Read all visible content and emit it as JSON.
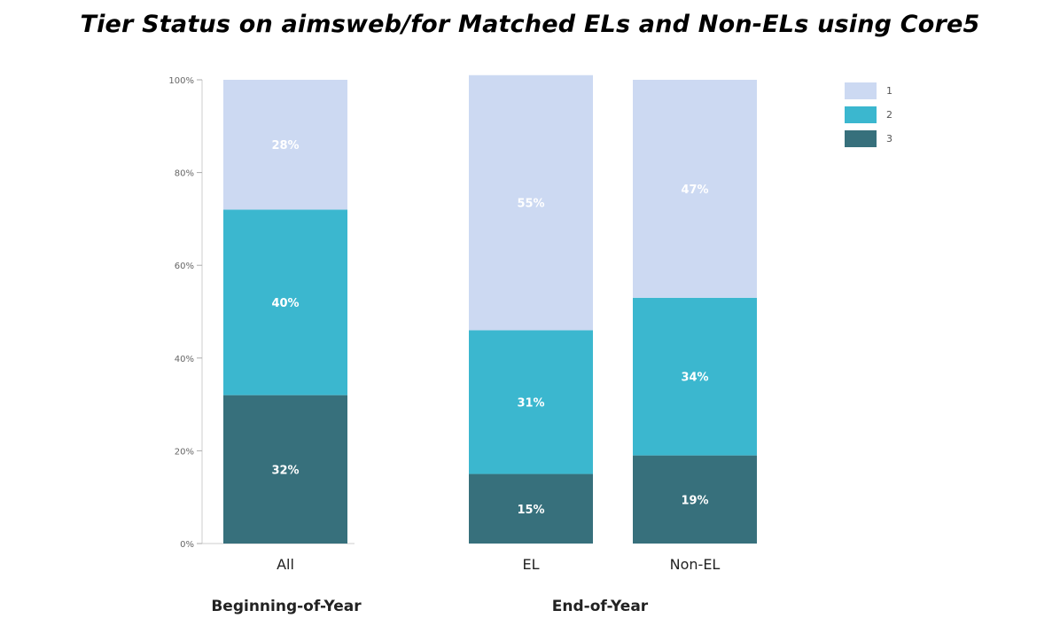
{
  "chart_data": {
    "type": "bar",
    "stacked": true,
    "title": "Tier Status on aimsweb/for Matched ELs and Non-ELs using Core5",
    "categories": [
      "All",
      "EL",
      "Non-EL"
    ],
    "groups": [
      {
        "label": "Beginning-of-Year",
        "categories": [
          "All"
        ]
      },
      {
        "label": "End-of-Year",
        "categories": [
          "EL",
          "Non-EL"
        ]
      }
    ],
    "series": [
      {
        "name": "1",
        "color": "#ccd9f2",
        "values": [
          28,
          55,
          47
        ],
        "labels": [
          "28%",
          "55%",
          "47%"
        ]
      },
      {
        "name": "2",
        "color": "#3bb7cf",
        "values": [
          40,
          31,
          34
        ],
        "labels": [
          "40%",
          "31%",
          "34%"
        ]
      },
      {
        "name": "3",
        "color": "#37707c",
        "values": [
          32,
          15,
          19
        ],
        "labels": [
          "32%",
          "15%",
          "19%"
        ]
      }
    ],
    "stack_order_bottom_to_top": [
      "3",
      "2",
      "1"
    ],
    "ylim": [
      0,
      100
    ],
    "yticks": [
      0,
      20,
      40,
      60,
      80,
      100
    ],
    "ytick_labels": [
      "0%",
      "20%",
      "40%",
      "60%",
      "80%",
      "100%"
    ],
    "xlabel": "",
    "ylabel": "",
    "legend": {
      "position": "top-right",
      "entries": [
        "1",
        "2",
        "3"
      ]
    },
    "grid": false
  }
}
